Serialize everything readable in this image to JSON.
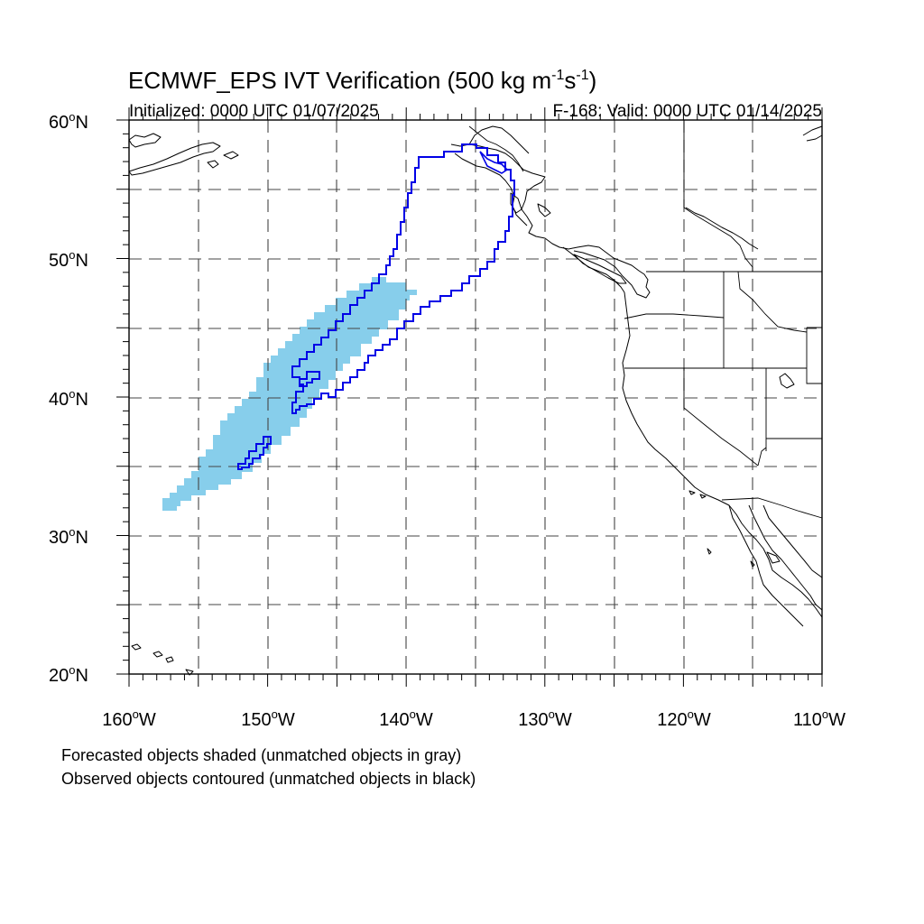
{
  "figure": {
    "title_main": "ECMWF_EPS IVT Verification (500 kg m",
    "title_sup1": "-1",
    "title_mid": "s",
    "title_sup2": "-1",
    "title_end": ")",
    "init_label": "Initialized: 0000 UTC 01/07/2025",
    "valid_label": "F-168: Valid: 0000 UTC 01/14/2025",
    "note_forecast": "Forecasted objects shaded (unmatched objects in gray)",
    "note_observed": "Observed objects contoured (unmatched objects in black)"
  },
  "map": {
    "lon_range": [
      -160,
      -110
    ],
    "lat_range": [
      20,
      60
    ],
    "lat_labels": [
      "60",
      "50",
      "40",
      "30",
      "20"
    ],
    "lon_labels": [
      "160",
      "150",
      "140",
      "130",
      "120",
      "110"
    ],
    "lat_hemisphere": "N",
    "lon_hemisphere": "W",
    "degree_symbol": "o",
    "colors": {
      "forecast_fill": "#87ceeb",
      "observed_contour": "#0000e6",
      "coastline": "#000000",
      "grid": "#444444"
    }
  }
}
